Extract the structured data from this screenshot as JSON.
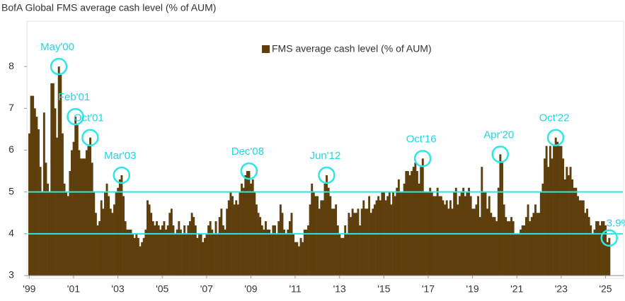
{
  "chart_data": {
    "type": "bar",
    "title": "BofA Global FMS average cash level (% of AUM)",
    "legend": "FMS average cash level (% of AUM)",
    "color": "#5e3f0c",
    "categories": [
      "'99",
      null,
      null,
      null,
      null,
      null,
      null,
      null,
      null,
      null,
      null,
      null,
      null,
      null,
      null,
      null,
      null,
      null,
      null,
      null,
      null,
      null,
      null,
      null,
      "'01",
      null,
      null,
      null,
      null,
      null,
      null,
      null,
      null,
      null,
      null,
      null,
      null,
      null,
      null,
      null,
      null,
      null,
      null,
      null,
      null,
      null,
      null,
      null,
      "'03",
      null,
      null,
      null,
      null,
      null,
      null,
      null,
      null,
      null,
      null,
      null,
      null,
      null,
      null,
      null,
      null,
      null,
      null,
      null,
      null,
      null,
      null,
      null,
      "'05",
      null,
      null,
      null,
      null,
      null,
      null,
      null,
      null,
      null,
      null,
      null,
      null,
      null,
      null,
      null,
      null,
      null,
      null,
      null,
      null,
      null,
      null,
      null,
      "'07",
      null,
      null,
      null,
      null,
      null,
      null,
      null,
      null,
      null,
      null,
      null,
      null,
      null,
      null,
      null,
      null,
      null,
      null,
      null,
      null,
      null,
      null,
      null,
      "'09",
      null,
      null,
      null,
      null,
      null,
      null,
      null,
      null,
      null,
      null,
      null,
      null,
      null,
      null,
      null,
      null,
      null,
      null,
      null,
      null,
      null,
      null,
      null,
      "'11",
      null,
      null,
      null,
      null,
      null,
      null,
      null,
      null,
      null,
      null,
      null,
      null,
      null,
      null,
      null,
      null,
      null,
      null,
      null,
      null,
      null,
      null,
      null,
      "'13",
      null,
      null,
      null,
      null,
      null,
      null,
      null,
      null,
      null,
      null,
      null,
      null,
      null,
      null,
      null,
      null,
      null,
      null,
      null,
      null,
      null,
      null,
      null,
      "'15",
      null,
      null,
      null,
      null,
      null,
      null,
      null,
      null,
      null,
      null,
      null,
      null,
      null,
      null,
      null,
      null,
      null,
      null,
      null,
      null,
      null,
      null,
      null,
      "'17",
      null,
      null,
      null,
      null,
      null,
      null,
      null,
      null,
      null,
      null,
      null,
      null,
      null,
      null,
      null,
      null,
      null,
      null,
      null,
      null,
      null,
      null,
      null,
      "'19",
      null,
      null,
      null,
      null,
      null,
      null,
      null,
      null,
      null,
      null,
      null,
      null,
      null,
      null,
      null,
      null,
      null,
      null,
      null,
      null,
      null,
      null,
      null,
      "'21",
      null,
      null,
      null,
      null,
      null,
      null,
      null,
      null,
      null,
      null,
      null,
      null,
      null,
      null,
      null,
      null,
      null,
      null,
      null,
      null,
      null,
      null,
      null,
      "'23",
      null,
      null,
      null,
      null,
      null,
      null,
      null,
      null,
      null,
      null,
      null,
      null,
      null,
      null,
      null,
      null,
      null,
      null,
      null,
      null,
      null,
      null,
      null,
      "'25",
      null,
      null
    ],
    "values": [
      6.4,
      7.3,
      7.3,
      7.0,
      6.8,
      6.5,
      5.6,
      5.0,
      6.9,
      5.7,
      5.2,
      5.0,
      7.6,
      7.6,
      7.0,
      6.3,
      8.0,
      7.8,
      6.4,
      5.2,
      5.0,
      4.9,
      5.5,
      6.0,
      6.2,
      6.8,
      6.6,
      6.0,
      5.8,
      5.8,
      5.8,
      6.0,
      6.1,
      6.3,
      5.7,
      5.0,
      4.5,
      4.2,
      4.3,
      4.8,
      4.6,
      5.0,
      5.2,
      4.9,
      4.6,
      4.5,
      4.7,
      5.0,
      5.1,
      5.3,
      5.4,
      4.9,
      4.3,
      4.1,
      4.1,
      4.1,
      4.0,
      3.9,
      4.0,
      3.9,
      3.7,
      3.8,
      3.9,
      4.1,
      4.8,
      4.7,
      4.5,
      4.3,
      4.2,
      4.3,
      4.2,
      4.1,
      4.2,
      4.3,
      4.1,
      4.2,
      4.5,
      4.6,
      4.2,
      4.0,
      4.1,
      4.3,
      4.1,
      4.0,
      4.2,
      4.0,
      4.2,
      4.3,
      4.5,
      4.4,
      4.2,
      3.9,
      4.0,
      4.0,
      3.8,
      3.9,
      4.0,
      4.2,
      4.3,
      4.1,
      4.0,
      4.3,
      4.0,
      4.4,
      4.6,
      4.2,
      4.1,
      4.6,
      4.8,
      5.0,
      4.9,
      4.7,
      4.8,
      4.7,
      5.0,
      5.2,
      5.1,
      5.4,
      5.5,
      5.5,
      5.2,
      5.3,
      5.0,
      4.7,
      4.5,
      4.4,
      4.2,
      4.1,
      4.3,
      4.1,
      4.1,
      4.0,
      4.2,
      4.2,
      4.0,
      4.3,
      4.7,
      4.5,
      4.1,
      4.0,
      4.1,
      4.3,
      4.5,
      4.0,
      3.8,
      3.8,
      3.7,
      3.9,
      3.8,
      4.1,
      4.1,
      4.2,
      4.7,
      5.2,
      5.0,
      4.9,
      4.9,
      4.6,
      4.8,
      4.8,
      5.2,
      5.4,
      5.1,
      4.9,
      4.6,
      4.6,
      4.7,
      4.2,
      4.0,
      3.9,
      3.9,
      4.2,
      4.0,
      4.5,
      4.4,
      4.6,
      4.5,
      4.5,
      4.6,
      4.2,
      4.6,
      4.8,
      4.6,
      4.6,
      4.9,
      4.5,
      4.6,
      4.7,
      4.8,
      4.9,
      4.8,
      5.0,
      5.0,
      4.8,
      4.9,
      5.0,
      4.7,
      5.0,
      4.9,
      5.1,
      5.3,
      5.0,
      5.0,
      5.2,
      5.5,
      5.5,
      5.4,
      5.5,
      5.6,
      5.7,
      5.5,
      5.2,
      5.6,
      5.8,
      5.0,
      5.0,
      5.0,
      5.1,
      5.0,
      4.9,
      4.9,
      5.1,
      4.9,
      4.9,
      4.8,
      4.7,
      4.8,
      4.6,
      4.8,
      4.6,
      5.0,
      5.1,
      4.7,
      4.9,
      5.0,
      5.1,
      4.9,
      5.0,
      5.1,
      4.9,
      4.6,
      4.6,
      4.7,
      4.9,
      4.4,
      5.6,
      5.0,
      5.0,
      4.6,
      4.9,
      4.5,
      4.4,
      4.4,
      4.3,
      5.1,
      5.9,
      5.7,
      4.7,
      4.4,
      4.3,
      4.3,
      4.4,
      4.3,
      4.0,
      4.0,
      4.0,
      4.1,
      4.2,
      4.2,
      4.4,
      4.7,
      4.3,
      4.4,
      4.5,
      4.7,
      4.5,
      4.5,
      5.0,
      5.2,
      5.8,
      6.1,
      5.6,
      6.1,
      5.8,
      6.1,
      6.3,
      6.2,
      6.1,
      6.1,
      5.8,
      5.3,
      5.6,
      5.4,
      5.6,
      5.3,
      5.1,
      5.1,
      4.9,
      4.8,
      4.8,
      4.8,
      4.5,
      4.6,
      4.4,
      4.2,
      4.0,
      4.1,
      4.3,
      4.3,
      4.2,
      4.3,
      4.3,
      4.2,
      3.8,
      3.9
    ],
    "ylim": [
      3,
      9
    ],
    "yticks": [
      3,
      4,
      5,
      6,
      7,
      8
    ],
    "grid": false,
    "hlines": [
      5,
      4
    ],
    "hline_color": "#2ee6e6",
    "annotations": [
      {
        "label": "May'00",
        "index": 16
      },
      {
        "label": "Feb'01",
        "index": 25
      },
      {
        "label": "Oct'01",
        "index": 33
      },
      {
        "label": "Mar'03",
        "index": 50
      },
      {
        "label": "Dec'08",
        "index": 119
      },
      {
        "label": "Jun'12",
        "index": 161
      },
      {
        "label": "Oct'16",
        "index": 213
      },
      {
        "label": "Apr'20",
        "index": 255
      },
      {
        "label": "Oct'22",
        "index": 285
      },
      {
        "label": "3.9%",
        "index": 314
      }
    ]
  }
}
